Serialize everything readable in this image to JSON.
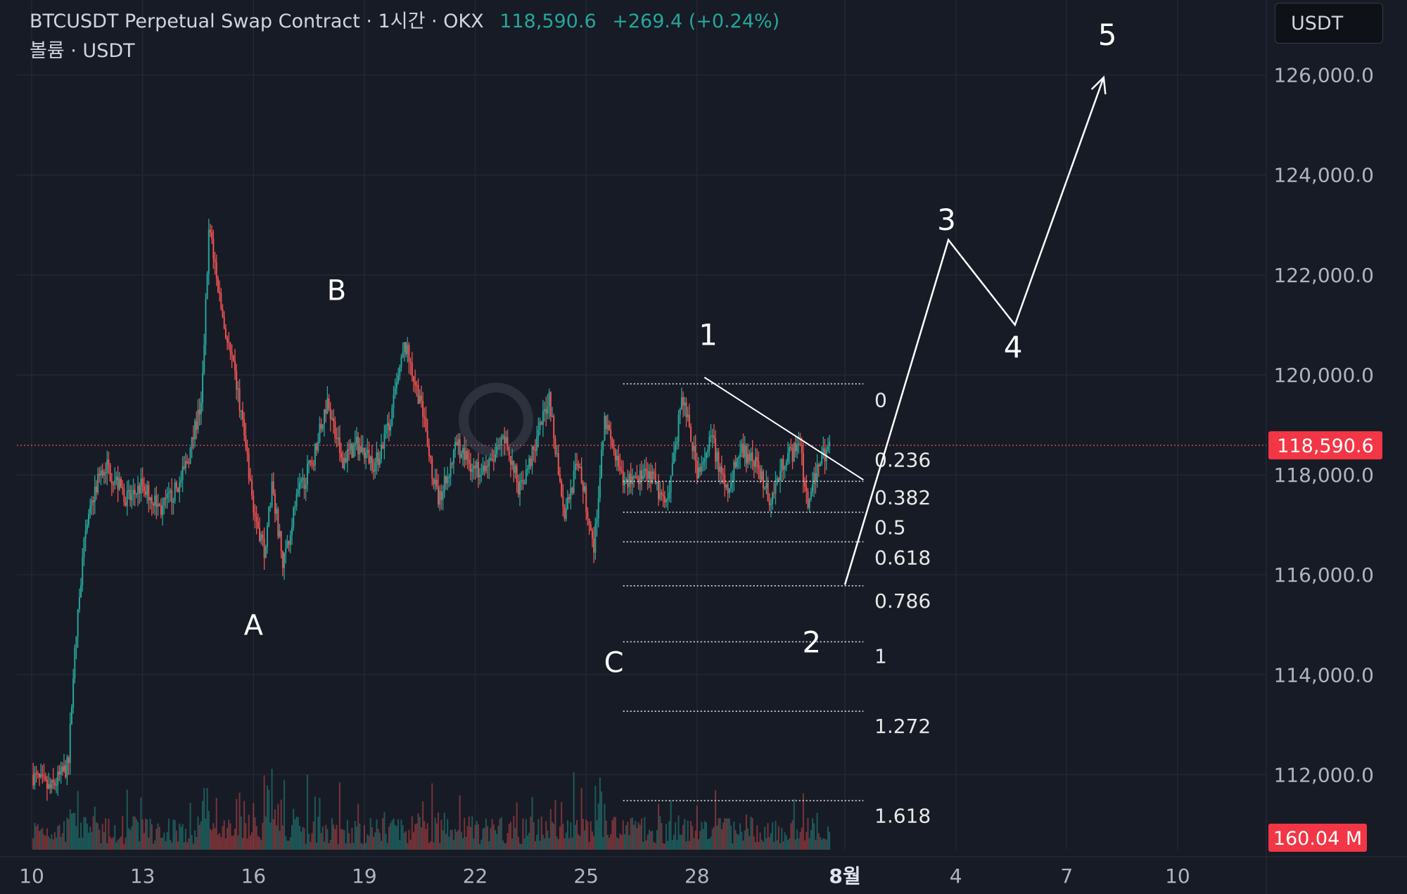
{
  "header": {
    "symbol": "BTCUSDT Perpetual Swap Contract · 1시간 · OKX",
    "last_price": "118,590.6",
    "change": "+269.4 (+0.24%)",
    "volume_label": "볼륨 · USDT"
  },
  "currency_button": "USDT",
  "colors": {
    "background": "#171b26",
    "grid": "#232733",
    "up": "#26a69a",
    "down": "#ef5350",
    "price_tag": "#f23645",
    "annotation": "#ffffff"
  },
  "chart_data": {
    "type": "candlestick",
    "y_axis": {
      "ticks": [
        126000,
        124000,
        122000,
        120000,
        118000,
        116000,
        114000,
        112000
      ],
      "tick_labels": [
        "126,000.0",
        "124,000.0",
        "122,000.0",
        "120,000.0",
        "118,000.0",
        "116,000.0",
        "114,000.0",
        "112,000.0"
      ],
      "range": [
        110500,
        127500
      ]
    },
    "x_axis": {
      "ticks": [
        0,
        3,
        6,
        9,
        12,
        15,
        18,
        22,
        25,
        28,
        31
      ],
      "tick_labels": [
        "10",
        "13",
        "16",
        "19",
        "22",
        "25",
        "28",
        "8월",
        "4",
        "7",
        "10"
      ],
      "range": [
        -0.4,
        33.4
      ],
      "unit": "days from Jul 10"
    },
    "current_price": 118590.6,
    "current_price_label": "118,590.6",
    "volume_tag": "160.04 M",
    "price_path": [
      [
        0.0,
        112000
      ],
      [
        0.5,
        111700
      ],
      [
        1.0,
        112200
      ],
      [
        1.1,
        113800
      ],
      [
        1.4,
        116500
      ],
      [
        1.7,
        117700
      ],
      [
        2.0,
        118200
      ],
      [
        2.6,
        117500
      ],
      [
        3.0,
        117800
      ],
      [
        3.5,
        117300
      ],
      [
        4.0,
        117800
      ],
      [
        4.3,
        118500
      ],
      [
        4.6,
        119500
      ],
      [
        4.8,
        123000
      ],
      [
        5.2,
        121000
      ],
      [
        5.6,
        119600
      ],
      [
        6.0,
        117300
      ],
      [
        6.3,
        116500
      ],
      [
        6.5,
        117800
      ],
      [
        6.8,
        116200
      ],
      [
        7.2,
        117600
      ],
      [
        7.6,
        118300
      ],
      [
        8.0,
        119500
      ],
      [
        8.4,
        118300
      ],
      [
        8.8,
        118600
      ],
      [
        9.3,
        118200
      ],
      [
        9.7,
        119100
      ],
      [
        10.1,
        120600
      ],
      [
        10.5,
        119500
      ],
      [
        11.0,
        117400
      ],
      [
        11.5,
        118600
      ],
      [
        12.0,
        118100
      ],
      [
        12.4,
        118200
      ],
      [
        12.8,
        118700
      ],
      [
        13.2,
        117700
      ],
      [
        13.6,
        118500
      ],
      [
        14.0,
        119600
      ],
      [
        14.4,
        117200
      ],
      [
        14.8,
        118300
      ],
      [
        15.2,
        116500
      ],
      [
        15.5,
        119100
      ],
      [
        16.0,
        117800
      ],
      [
        16.3,
        118000
      ],
      [
        16.8,
        117900
      ],
      [
        17.2,
        117300
      ],
      [
        17.6,
        119600
      ],
      [
        18.0,
        118100
      ],
      [
        18.4,
        118700
      ],
      [
        18.8,
        117700
      ],
      [
        19.2,
        118500
      ],
      [
        19.6,
        118200
      ],
      [
        20.0,
        117500
      ],
      [
        20.4,
        118400
      ],
      [
        20.8,
        118500
      ],
      [
        21.0,
        117300
      ],
      [
        21.3,
        118300
      ],
      [
        21.6,
        118590
      ]
    ],
    "labels_abc": [
      {
        "text": "A",
        "x": 6.0,
        "y": 114800
      },
      {
        "text": "B",
        "x": 8.25,
        "y": 121500
      },
      {
        "text": "C",
        "x": 15.75,
        "y": 114050
      }
    ],
    "wave_labels": [
      {
        "text": "1",
        "x": 18.3,
        "y": 120600
      },
      {
        "text": "2",
        "x": 21.1,
        "y": 114450
      },
      {
        "text": "3",
        "x": 24.75,
        "y": 122900
      },
      {
        "text": "4",
        "x": 26.55,
        "y": 120350
      },
      {
        "text": "5",
        "x": 29.1,
        "y": 126600
      }
    ],
    "projection_path": [
      [
        22.0,
        115800
      ],
      [
        24.8,
        122700
      ],
      [
        26.6,
        121000
      ],
      [
        29.0,
        125950
      ]
    ],
    "trendline": [
      [
        18.2,
        119950
      ],
      [
        22.5,
        117900
      ]
    ],
    "fibonacci": {
      "x_start": 16.0,
      "x_end": 22.5,
      "label_x": 22.8,
      "levels": [
        {
          "ratio": "0",
          "price": 119820
        },
        {
          "ratio": "0.236",
          "price": null
        },
        {
          "ratio": "0.382",
          "price": 117870
        },
        {
          "ratio": "0.5",
          "price": 117250
        },
        {
          "ratio": "0.618",
          "price": 116660
        },
        {
          "ratio": "0.786",
          "price": 115780
        },
        {
          "ratio": "1",
          "price": 114660
        },
        {
          "ratio": "1.272",
          "price": 113270
        },
        {
          "ratio": "1.618",
          "price": 111480
        }
      ],
      "label_prices": [
        119500,
        118300,
        117550,
        116950,
        116350,
        115480,
        114380,
        112980,
        111180
      ]
    }
  }
}
